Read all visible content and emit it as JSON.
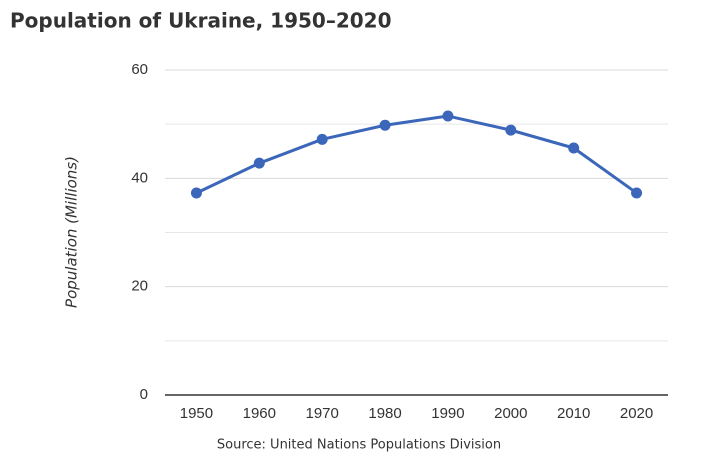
{
  "chart_data": {
    "type": "line",
    "title": "Population of Ukraine, 1950–2020",
    "y_label": "Population (Millions)",
    "source": "Source: United Nations Populations Division",
    "categories": [
      "1950",
      "1960",
      "1970",
      "1980",
      "1990",
      "2000",
      "2010",
      "2020"
    ],
    "series": [
      {
        "name": "Population",
        "color": "#3b66ba",
        "values": [
          37.3,
          42.8,
          47.2,
          49.8,
          51.5,
          48.9,
          45.6,
          37.3
        ]
      }
    ],
    "ylim": [
      0,
      60
    ],
    "yticks": [
      0,
      20,
      40,
      60
    ],
    "minor_yticks": [
      10,
      30,
      50
    ],
    "grid": true
  }
}
